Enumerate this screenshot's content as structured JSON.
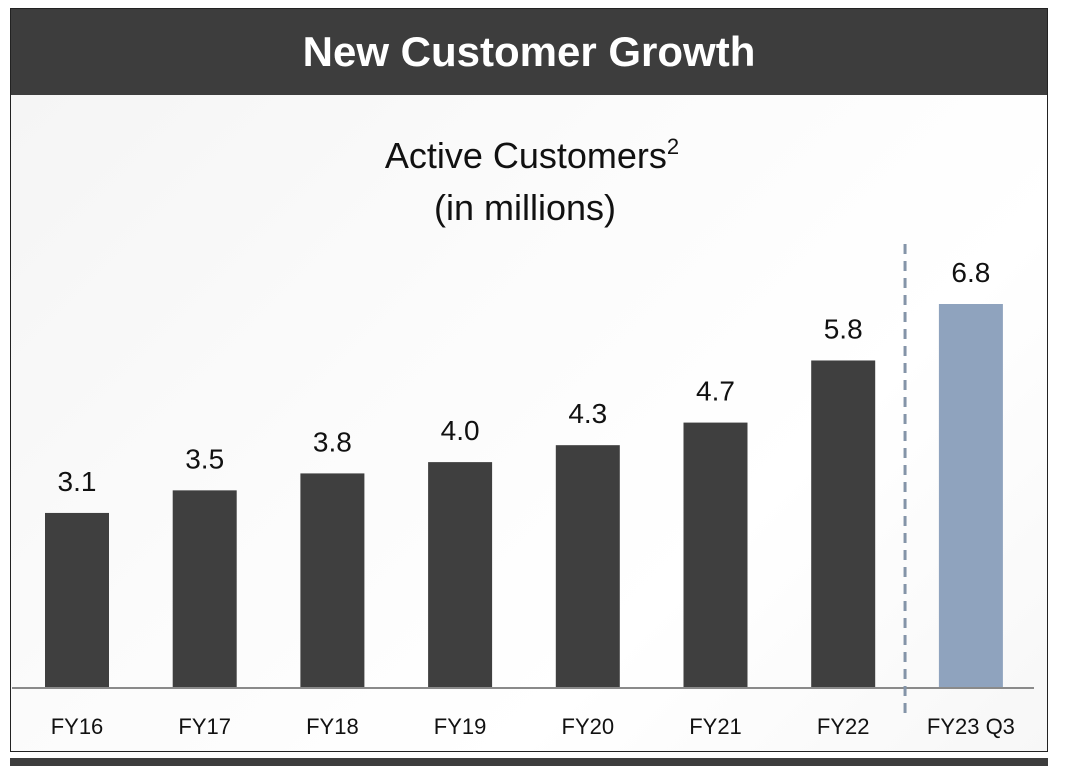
{
  "header": {
    "title": "New Customer Growth"
  },
  "chart_data": {
    "type": "bar",
    "title": "Active Customers",
    "title_superscript": "2",
    "subtitle": "(in millions)",
    "categories": [
      "FY16",
      "FY17",
      "FY18",
      "FY19",
      "FY20",
      "FY21",
      "FY22",
      "FY23 Q3"
    ],
    "values": [
      3.1,
      3.5,
      3.8,
      4.0,
      4.3,
      4.7,
      5.8,
      6.8
    ],
    "value_labels": [
      "3.1",
      "3.5",
      "3.8",
      "4.0",
      "4.3",
      "4.7",
      "5.8",
      "6.8"
    ],
    "ylim": [
      0,
      6.8
    ],
    "grid": false,
    "legend": "none",
    "highlight_category": "FY23 Q3",
    "separator_before": "FY23 Q3",
    "colors": {
      "bar": "#3f3f3f",
      "highlight": "#8fa3be",
      "baseline": "#8a8a8a",
      "separator": "#8494a8"
    }
  }
}
